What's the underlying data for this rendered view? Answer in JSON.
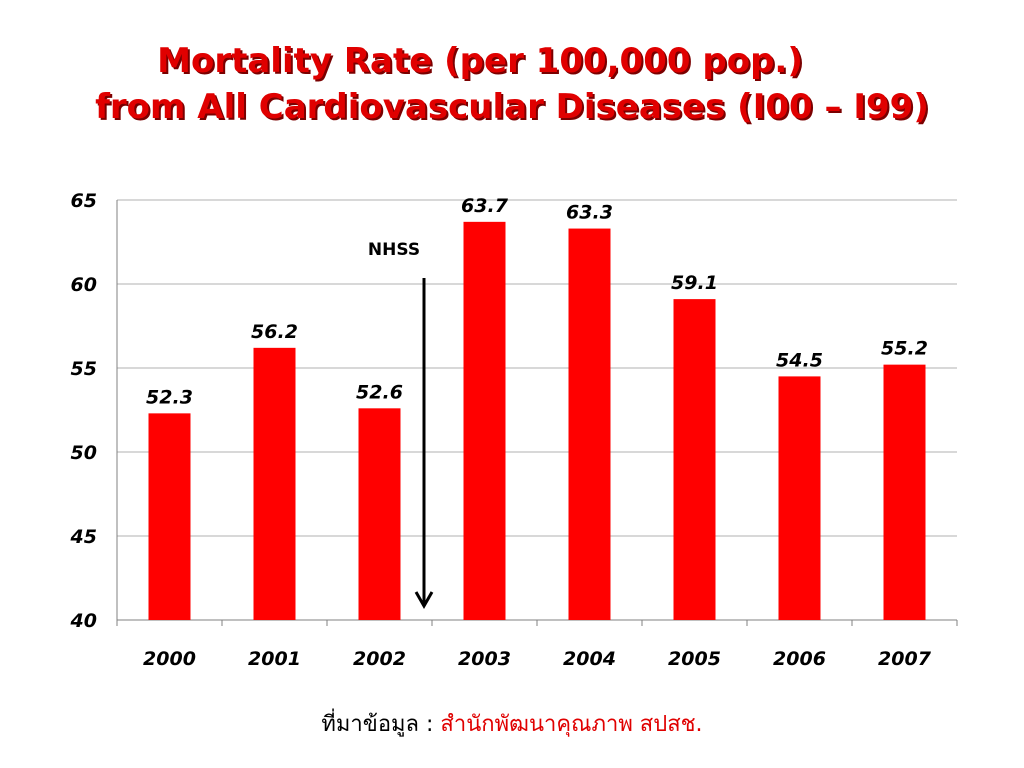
{
  "title": {
    "line1": "Mortality Rate (per 100,000 pop.)",
    "line2": "from All Cardiovascular Diseases (I00 – I99)"
  },
  "source": {
    "label": "ที่มาข้อมูล : ",
    "value": "สำนักพัฒนาคุณภาพ สปสช."
  },
  "colors": {
    "bar": "#ff0000",
    "title": "#e00000",
    "grid": "#b0b0b0"
  },
  "chart_data": {
    "type": "bar",
    "title": "Mortality Rate (per 100,000 pop.) from All Cardiovascular Diseases (I00 – I99)",
    "categories": [
      "2000",
      "2001",
      "2002",
      "2003",
      "2004",
      "2005",
      "2006",
      "2007"
    ],
    "values": [
      52.3,
      56.2,
      52.6,
      63.7,
      63.3,
      59.1,
      54.5,
      55.2
    ],
    "data_labels": [
      "52.3",
      "56.2",
      "52.6",
      "63.7",
      "63.3",
      "59.1",
      "54.5",
      "55.2"
    ],
    "xlabel": "",
    "ylabel": "",
    "ylim": [
      40,
      65
    ],
    "yticks": [
      "40",
      "45",
      "50",
      "55",
      "60",
      "65"
    ],
    "grid": true,
    "legend": "none",
    "annotation": {
      "text": "NHSS",
      "arrow": "down",
      "between": [
        "2002",
        "2003"
      ]
    }
  }
}
